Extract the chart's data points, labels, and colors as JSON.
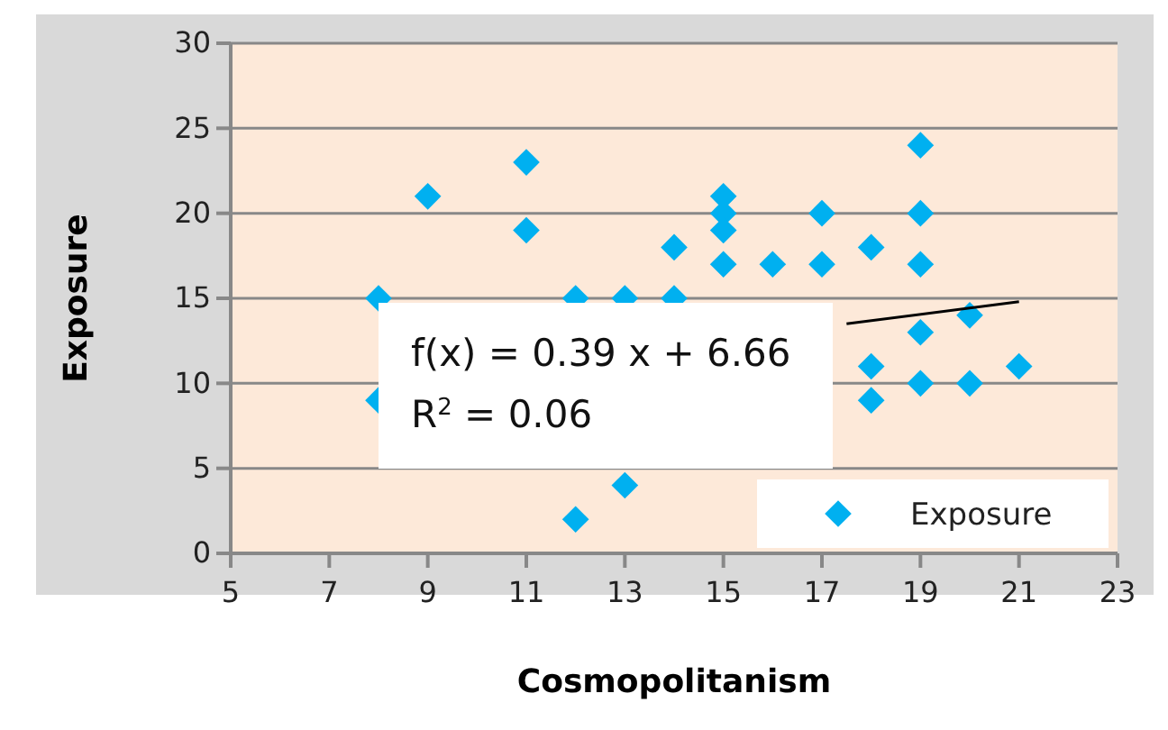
{
  "chart_data": {
    "type": "scatter",
    "xlabel": "Cosmopolitanism",
    "ylabel": "Exposure",
    "xlim": [
      5,
      23
    ],
    "xticks": [
      5,
      7,
      9,
      11,
      13,
      15,
      17,
      19,
      21,
      23
    ],
    "ylim": [
      0,
      30
    ],
    "yticks": [
      0,
      5,
      10,
      15,
      20,
      25,
      30
    ],
    "grid": "y",
    "legend": "bottom right",
    "marker": "diamond",
    "series": [
      {
        "name": "Exposure",
        "color": "#00b0f0",
        "x": [
          8,
          8,
          9,
          11,
          11,
          12,
          12,
          13,
          13,
          14,
          14,
          15,
          15,
          15,
          15,
          16,
          17,
          17,
          18,
          18,
          18,
          19,
          19,
          19,
          19,
          19,
          20,
          20,
          21
        ],
        "values": [
          15,
          9,
          21,
          23,
          19,
          15,
          2,
          15,
          4,
          18,
          15,
          21,
          20,
          19,
          17,
          17,
          20,
          17,
          18,
          11,
          9,
          24,
          20,
          17,
          13,
          10,
          14,
          10,
          11
        ]
      },
      {
        "type": "line",
        "marker": "none",
        "color": "#000000",
        "x": [
          17.5,
          21
        ],
        "values": [
          13.5,
          14.8
        ]
      }
    ],
    "annotations": [
      "f(x) = 0.39 x + 6.66",
      "R$^{2}$ = 0.06"
    ]
  }
}
